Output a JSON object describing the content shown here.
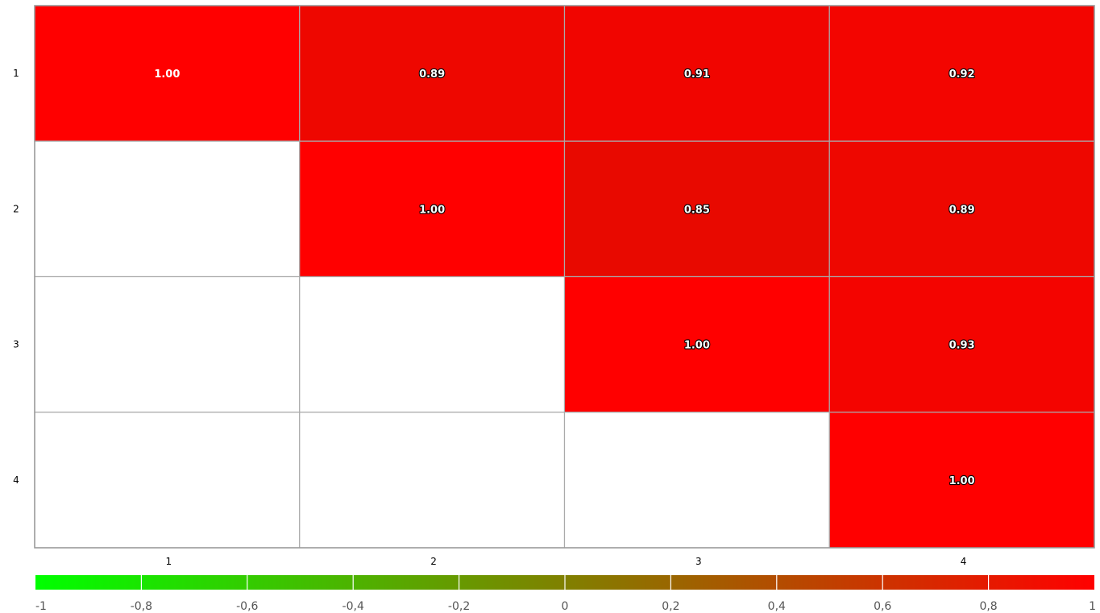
{
  "chart_data": {
    "type": "heatmap",
    "rows": [
      "1",
      "2",
      "3",
      "4"
    ],
    "columns": [
      "1",
      "2",
      "3",
      "4"
    ],
    "values": [
      [
        1.0,
        0.89,
        0.91,
        0.92
      ],
      [
        null,
        1.0,
        0.85,
        0.89
      ],
      [
        null,
        null,
        1.0,
        0.93
      ],
      [
        null,
        null,
        null,
        1.0
      ]
    ],
    "value_labels": [
      [
        "1.00",
        "0.89",
        "0.91",
        "0.92"
      ],
      [
        "",
        "1.00",
        "0.85",
        "0.89"
      ],
      [
        "",
        "",
        "1.00",
        "0.93"
      ],
      [
        "",
        "",
        "",
        "1.00"
      ]
    ],
    "color_scale": {
      "min": -1,
      "max": 1,
      "min_color": "#00ff00",
      "mid_color": "#808000",
      "max_color": "#ff0000",
      "ticks": [
        "-1",
        "-0,8",
        "-0,6",
        "-0,4",
        "-0,2",
        "0",
        "0,2",
        "0,4",
        "0,6",
        "0,8",
        "1"
      ]
    },
    "grid_color": "#aaaaaa",
    "empty_cell_color": "#ffffff"
  }
}
